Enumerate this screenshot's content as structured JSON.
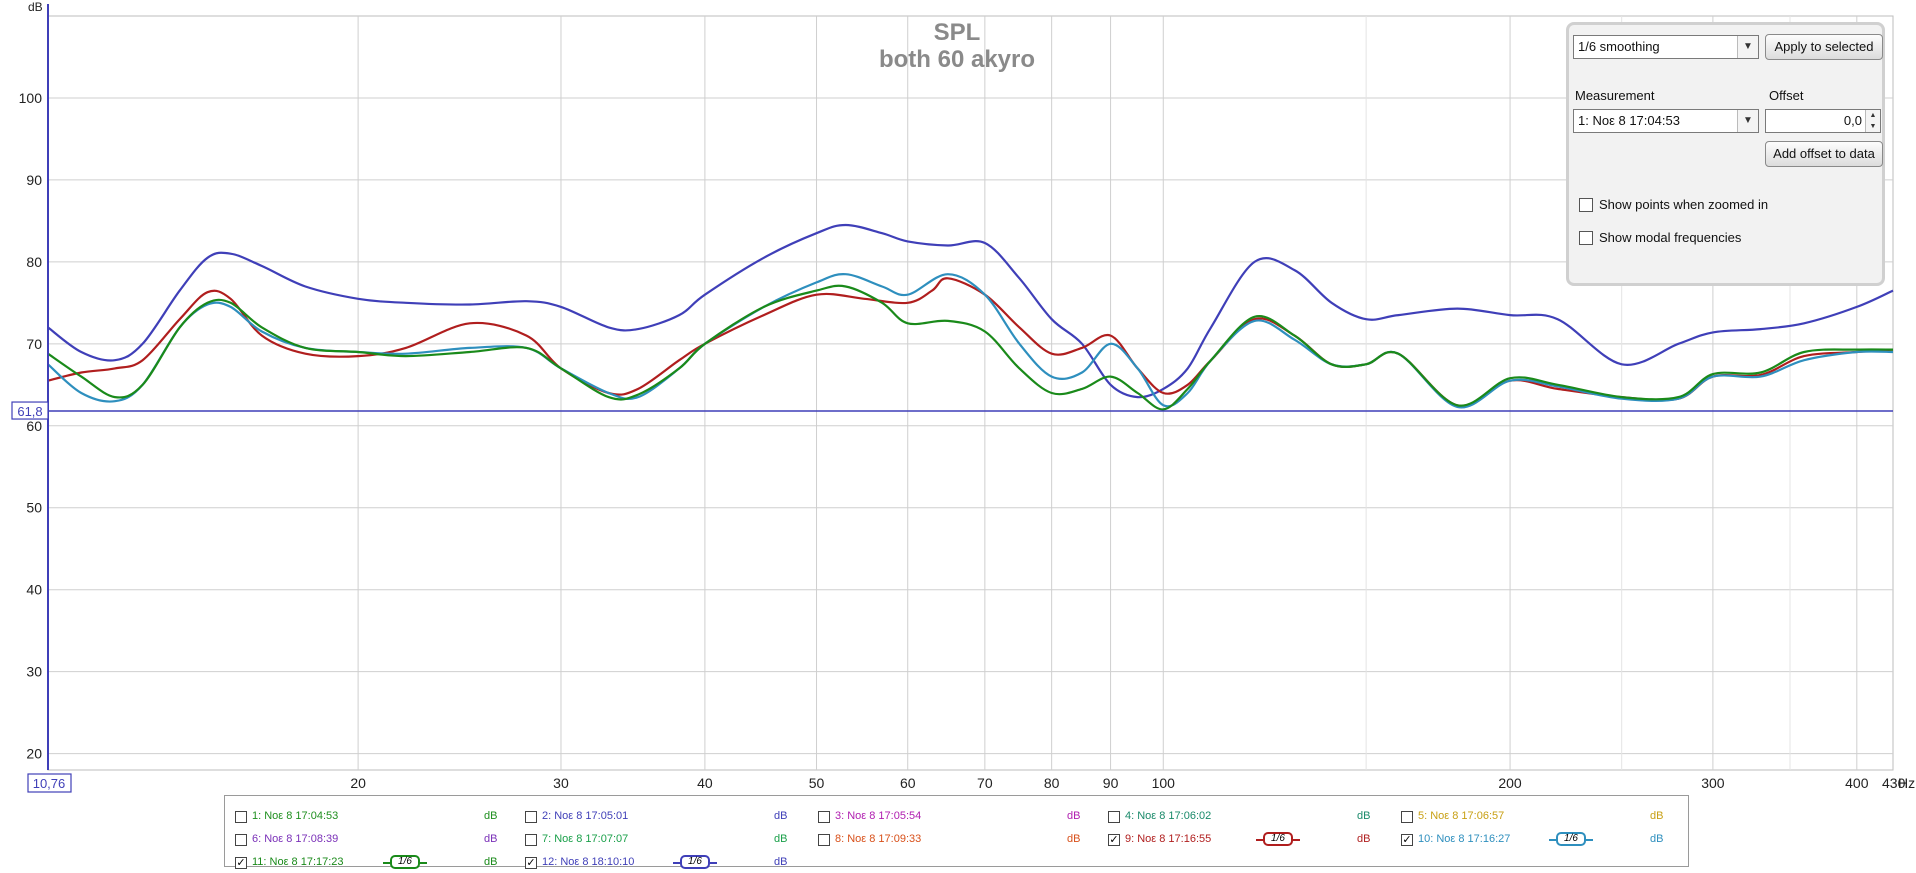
{
  "chart_data": {
    "type": "line",
    "title": "SPL",
    "subtitle": "both 60 akyro",
    "ylabel": "dB",
    "xunit": "Hz",
    "xscale": "log",
    "xlim": [
      10.76,
      430
    ],
    "ylim": [
      18,
      110
    ],
    "y_ticks": [
      20,
      30,
      40,
      50,
      60,
      70,
      80,
      90,
      100
    ],
    "x_ticks": [
      {
        "v": 20,
        "label": "20"
      },
      {
        "v": 30,
        "label": "30"
      },
      {
        "v": 40,
        "label": "40"
      },
      {
        "v": 50,
        "label": "50"
      },
      {
        "v": 60,
        "label": "60"
      },
      {
        "v": 70,
        "label": "70"
      },
      {
        "v": 80,
        "label": "80"
      },
      {
        "v": 90,
        "label": "90"
      },
      {
        "v": 100,
        "label": "100"
      },
      {
        "v": 200,
        "label": "200"
      },
      {
        "v": 300,
        "label": "300"
      },
      {
        "v": 400,
        "label": "400"
      },
      {
        "v": 430,
        "label": "430"
      }
    ],
    "x_minor_grid": [
      150,
      250,
      350
    ],
    "cursor": {
      "y": 61.8,
      "y_label": "61,8",
      "x_label": "10,76"
    },
    "grid": true,
    "series": [
      {
        "name": "12: Νοε 8 18:10:10",
        "color": "#3f3fb8",
        "x": [
          10.76,
          11.5,
          12.3,
          13,
          14,
          14.8,
          15.5,
          16.5,
          18,
          20,
          22,
          25,
          28,
          30,
          33,
          35,
          38,
          40,
          45,
          50,
          53,
          57,
          60,
          65,
          70,
          75,
          80,
          85,
          90,
          95,
          100,
          105,
          110,
          120,
          130,
          140,
          150,
          160,
          180,
          200,
          220,
          250,
          280,
          300,
          330,
          360,
          400,
          430
        ],
        "y": [
          72,
          69,
          68,
          70,
          76.5,
          80.5,
          81,
          79.5,
          77,
          75.5,
          75,
          74.8,
          75.2,
          74.5,
          72,
          71.8,
          73.5,
          76,
          80.5,
          83.5,
          84.5,
          83.5,
          82.5,
          82,
          82.3,
          78,
          73,
          70,
          65,
          63.5,
          64.5,
          67,
          72,
          80,
          79,
          75,
          73,
          73.5,
          74.3,
          73.5,
          73,
          67.5,
          70,
          71.4,
          71.8,
          72.5,
          74.5,
          76.5
        ]
      },
      {
        "name": "9: Νοε 8 17:16:55",
        "color": "#b01e1e",
        "x": [
          10.76,
          11.5,
          12.3,
          13,
          14,
          14.8,
          15.5,
          16.5,
          18,
          20,
          22,
          25,
          28,
          30,
          33,
          35,
          38,
          40,
          45,
          50,
          55,
          60,
          63,
          65,
          70,
          75,
          80,
          85,
          90,
          95,
          100,
          105,
          110,
          120,
          130,
          140,
          150,
          160,
          180,
          200,
          220,
          250,
          280,
          300,
          330,
          360,
          400,
          430
        ],
        "y": [
          65.5,
          66.5,
          67,
          68,
          73,
          76.3,
          75.5,
          71,
          68.8,
          68.5,
          69.5,
          72.5,
          71,
          67,
          64,
          64.5,
          68,
          70,
          73.5,
          76,
          75.5,
          75,
          76.5,
          78,
          76,
          72,
          68.8,
          69.5,
          71,
          67,
          64,
          65,
          68,
          73,
          71,
          67.5,
          67.5,
          68.8,
          62.5,
          65.5,
          64.5,
          63.5,
          63.3,
          66,
          66.2,
          68.5,
          69,
          69.3
        ]
      },
      {
        "name": "10: Νοε 8 17:16:27",
        "color": "#2e8fbe",
        "x": [
          10.76,
          11.5,
          12.3,
          13,
          14,
          14.8,
          15.5,
          16.5,
          18,
          20,
          22,
          25,
          28,
          30,
          33,
          35,
          38,
          40,
          45,
          50,
          53,
          57,
          60,
          65,
          70,
          75,
          80,
          85,
          90,
          95,
          100,
          105,
          110,
          120,
          130,
          140,
          150,
          160,
          180,
          200,
          220,
          250,
          280,
          300,
          330,
          360,
          400,
          430
        ],
        "y": [
          67.5,
          64,
          63,
          65,
          72,
          74.8,
          74.5,
          71.5,
          69.5,
          69,
          68.8,
          69.5,
          69.5,
          67,
          64,
          63.5,
          67,
          70,
          74.5,
          77.5,
          78.5,
          77,
          76,
          78.5,
          76,
          70,
          66,
          66.5,
          70,
          67,
          62.5,
          64,
          68,
          72.8,
          70.5,
          67.5,
          67.5,
          68.8,
          62.3,
          65.5,
          64.8,
          63.3,
          63.3,
          66,
          66,
          68,
          69,
          69
        ]
      },
      {
        "name": "11: Νοε 8 17:17:23",
        "color": "#1a8a1a",
        "x": [
          10.76,
          11.5,
          12.3,
          13,
          14,
          14.8,
          15.5,
          16.5,
          18,
          20,
          22,
          25,
          28,
          30,
          33,
          35,
          38,
          40,
          45,
          50,
          53,
          57,
          60,
          65,
          70,
          75,
          80,
          85,
          90,
          95,
          100,
          105,
          110,
          120,
          130,
          140,
          150,
          160,
          180,
          200,
          220,
          250,
          280,
          300,
          330,
          360,
          400,
          430
        ],
        "y": [
          68.8,
          66,
          63.5,
          65,
          72,
          75,
          75,
          72,
          69.5,
          69,
          68.5,
          69,
          69.5,
          67,
          63.5,
          63.8,
          67,
          70,
          74.5,
          76.5,
          77,
          75,
          72.5,
          72.8,
          71.5,
          67,
          64,
          64.5,
          66,
          64,
          62,
          64.5,
          68,
          73.3,
          71,
          67.5,
          67.5,
          68.8,
          62.5,
          65.8,
          65,
          63.5,
          63.5,
          66.3,
          66.5,
          69,
          69.3,
          69.3
        ]
      }
    ]
  },
  "panel": {
    "smoothing": "1/6 smoothing",
    "apply_button": "Apply to selected",
    "measurement_label": "Measurement",
    "offset_label": "Offset",
    "measurement_value": "1: Νοε 8 17:04:53",
    "offset_value": "0,0",
    "add_offset_button": "Add offset to data",
    "show_points": "Show points when zoomed in",
    "show_modal": "Show modal frequencies"
  },
  "legend": [
    {
      "name": "1: Νοε 8 17:04:53",
      "unit": "dB",
      "color": "#1f8f1f",
      "checked": false
    },
    {
      "name": "2: Νοε 8 17:05:01",
      "unit": "dB",
      "color": "#3f3fb8",
      "checked": false
    },
    {
      "name": "3: Νοε 8 17:05:54",
      "unit": "dB",
      "color": "#b01eb0",
      "checked": false
    },
    {
      "name": "4: Νοε 8 17:06:02",
      "unit": "dB",
      "color": "#1a8a6a",
      "checked": false
    },
    {
      "name": "5: Νοε 8 17:06:57",
      "unit": "dB",
      "color": "#c8a014",
      "checked": false
    },
    {
      "name": "6: Νοε 8 17:08:39",
      "unit": "dB",
      "color": "#7a30b8",
      "checked": false
    },
    {
      "name": "7: Νοε 8 17:07:07",
      "unit": "dB",
      "color": "#1aa04a",
      "checked": false
    },
    {
      "name": "8: Νοε 8 17:09:33",
      "unit": "dB",
      "color": "#d8501a",
      "checked": false
    },
    {
      "name": "9: Νοε 8 17:16:55",
      "unit": "dB",
      "color": "#b01e1e",
      "checked": true,
      "smooth": "1/6"
    },
    {
      "name": "10: Νοε 8 17:16:27",
      "unit": "dB",
      "color": "#2e8fbe",
      "checked": true,
      "smooth": "1/6"
    },
    {
      "name": "11: Νοε 8 17:17:23",
      "unit": "dB",
      "color": "#1a8a1a",
      "checked": true,
      "smooth": "1/6"
    },
    {
      "name": "12: Νοε 8 18:10:10",
      "unit": "dB",
      "color": "#3f3fb8",
      "checked": true,
      "smooth": "1/6"
    }
  ]
}
